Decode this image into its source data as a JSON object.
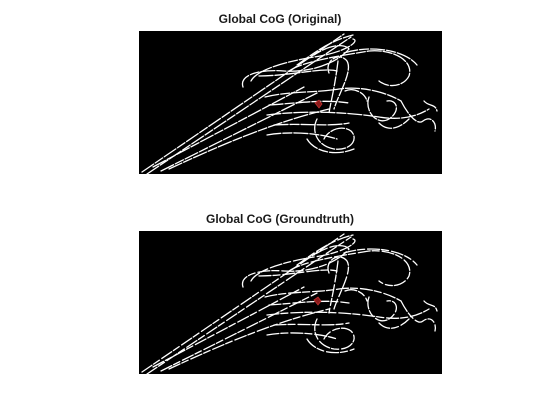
{
  "figure": {
    "panels": [
      {
        "title": "Global CoG (Original)"
      },
      {
        "title": "Global CoG (Groundtruth)"
      }
    ]
  },
  "colors": {
    "background": "#ffffff",
    "image_background": "#000000",
    "edges": "#ffffff",
    "cog_marker": "#8b1a1a"
  }
}
